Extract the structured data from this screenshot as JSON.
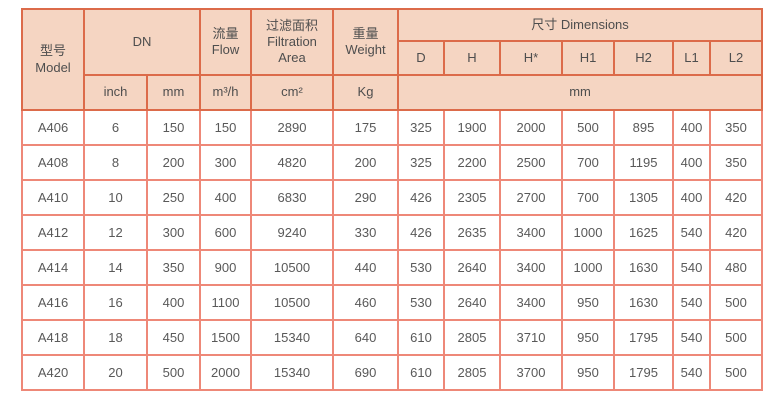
{
  "colors": {
    "header_bg": "#f5d5c2",
    "header_border": "#dc6b4a",
    "body_border": "#ee8878",
    "text": "#595959"
  },
  "table": {
    "header": {
      "model": "型号\nModel",
      "dn": "DN",
      "flow": "流量\nFlow",
      "filtration": "过滤面积\nFiltration\nArea",
      "weight": "重量\nWeight",
      "dimensions": "尺寸 Dimensions",
      "dims": [
        "D",
        "H",
        "H*",
        "H1",
        "H2",
        "L1",
        "L2"
      ],
      "units": {
        "inch": "inch",
        "mm": "mm",
        "flow": "m³/h",
        "filtration": "cm²",
        "weight": "Kg",
        "dims_mm": "mm"
      }
    },
    "rows": [
      [
        "A406",
        "6",
        "150",
        "150",
        "2890",
        "175",
        "325",
        "1900",
        "2000",
        "500",
        "895",
        "400",
        "350"
      ],
      [
        "A408",
        "8",
        "200",
        "300",
        "4820",
        "200",
        "325",
        "2200",
        "2500",
        "700",
        "1195",
        "400",
        "350"
      ],
      [
        "A410",
        "10",
        "250",
        "400",
        "6830",
        "290",
        "426",
        "2305",
        "2700",
        "700",
        "1305",
        "400",
        "420"
      ],
      [
        "A412",
        "12",
        "300",
        "600",
        "9240",
        "330",
        "426",
        "2635",
        "3400",
        "1000",
        "1625",
        "540",
        "420"
      ],
      [
        "A414",
        "14",
        "350",
        "900",
        "10500",
        "440",
        "530",
        "2640",
        "3400",
        "1000",
        "1630",
        "540",
        "480"
      ],
      [
        "A416",
        "16",
        "400",
        "1100",
        "10500",
        "460",
        "530",
        "2640",
        "3400",
        "950",
        "1630",
        "540",
        "500"
      ],
      [
        "A418",
        "18",
        "450",
        "1500",
        "15340",
        "640",
        "610",
        "2805",
        "3710",
        "950",
        "1795",
        "540",
        "500"
      ],
      [
        "A420",
        "20",
        "500",
        "2000",
        "15340",
        "690",
        "610",
        "2805",
        "3700",
        "950",
        "1795",
        "540",
        "500"
      ]
    ]
  }
}
